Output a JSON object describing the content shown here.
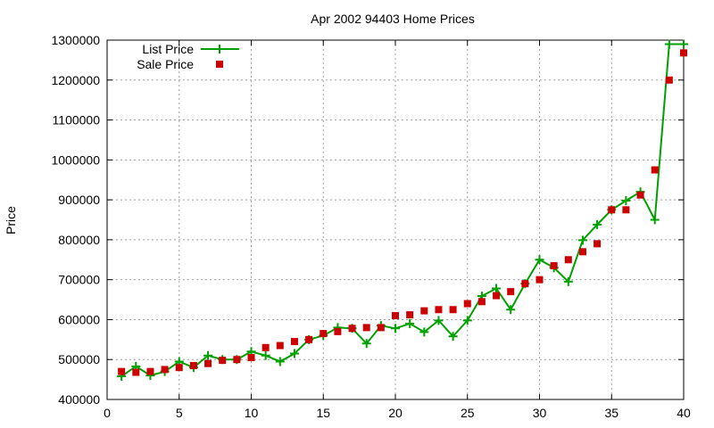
{
  "chart_data": {
    "type": "line",
    "title": "Apr 2002 94403 Home Prices",
    "xlabel": "",
    "ylabel": "Price",
    "xlim": [
      0,
      40
    ],
    "ylim": [
      400000,
      1300000
    ],
    "xticks": [
      0,
      5,
      10,
      15,
      20,
      25,
      30,
      35,
      40
    ],
    "yticks": [
      400000,
      500000,
      600000,
      700000,
      800000,
      900000,
      1000000,
      1100000,
      1200000,
      1300000
    ],
    "grid": true,
    "legend_position": "top-left",
    "x": [
      1,
      2,
      3,
      4,
      5,
      6,
      7,
      8,
      9,
      10,
      11,
      12,
      13,
      14,
      15,
      16,
      17,
      18,
      19,
      20,
      21,
      22,
      23,
      24,
      25,
      26,
      27,
      28,
      29,
      30,
      31,
      32,
      33,
      34,
      35,
      36,
      37,
      38,
      39,
      40
    ],
    "series": [
      {
        "name": "List Price",
        "style": "linespoints",
        "color": "#00a000",
        "values": [
          458000,
          483000,
          460000,
          470000,
          495000,
          480000,
          510000,
          500000,
          500000,
          520000,
          510000,
          495000,
          515000,
          550000,
          560000,
          580000,
          578000,
          540000,
          585000,
          578000,
          590000,
          569000,
          598000,
          558000,
          598000,
          659000,
          678000,
          625000,
          690000,
          750000,
          730000,
          695000,
          799000,
          838000,
          875000,
          898000,
          920000,
          850000,
          1290000,
          1290000
        ]
      },
      {
        "name": "Sale Price",
        "style": "points",
        "color": "#cc0000",
        "values": [
          470000,
          468000,
          470000,
          475000,
          480000,
          485000,
          490000,
          498000,
          500000,
          505000,
          530000,
          535000,
          545000,
          550000,
          565000,
          570000,
          578000,
          580000,
          580000,
          610000,
          612000,
          622000,
          625000,
          625000,
          640000,
          645000,
          660000,
          670000,
          690000,
          700000,
          735000,
          750000,
          770000,
          790000,
          875000,
          875000,
          912000,
          975000,
          1200000,
          1268000
        ]
      }
    ]
  }
}
